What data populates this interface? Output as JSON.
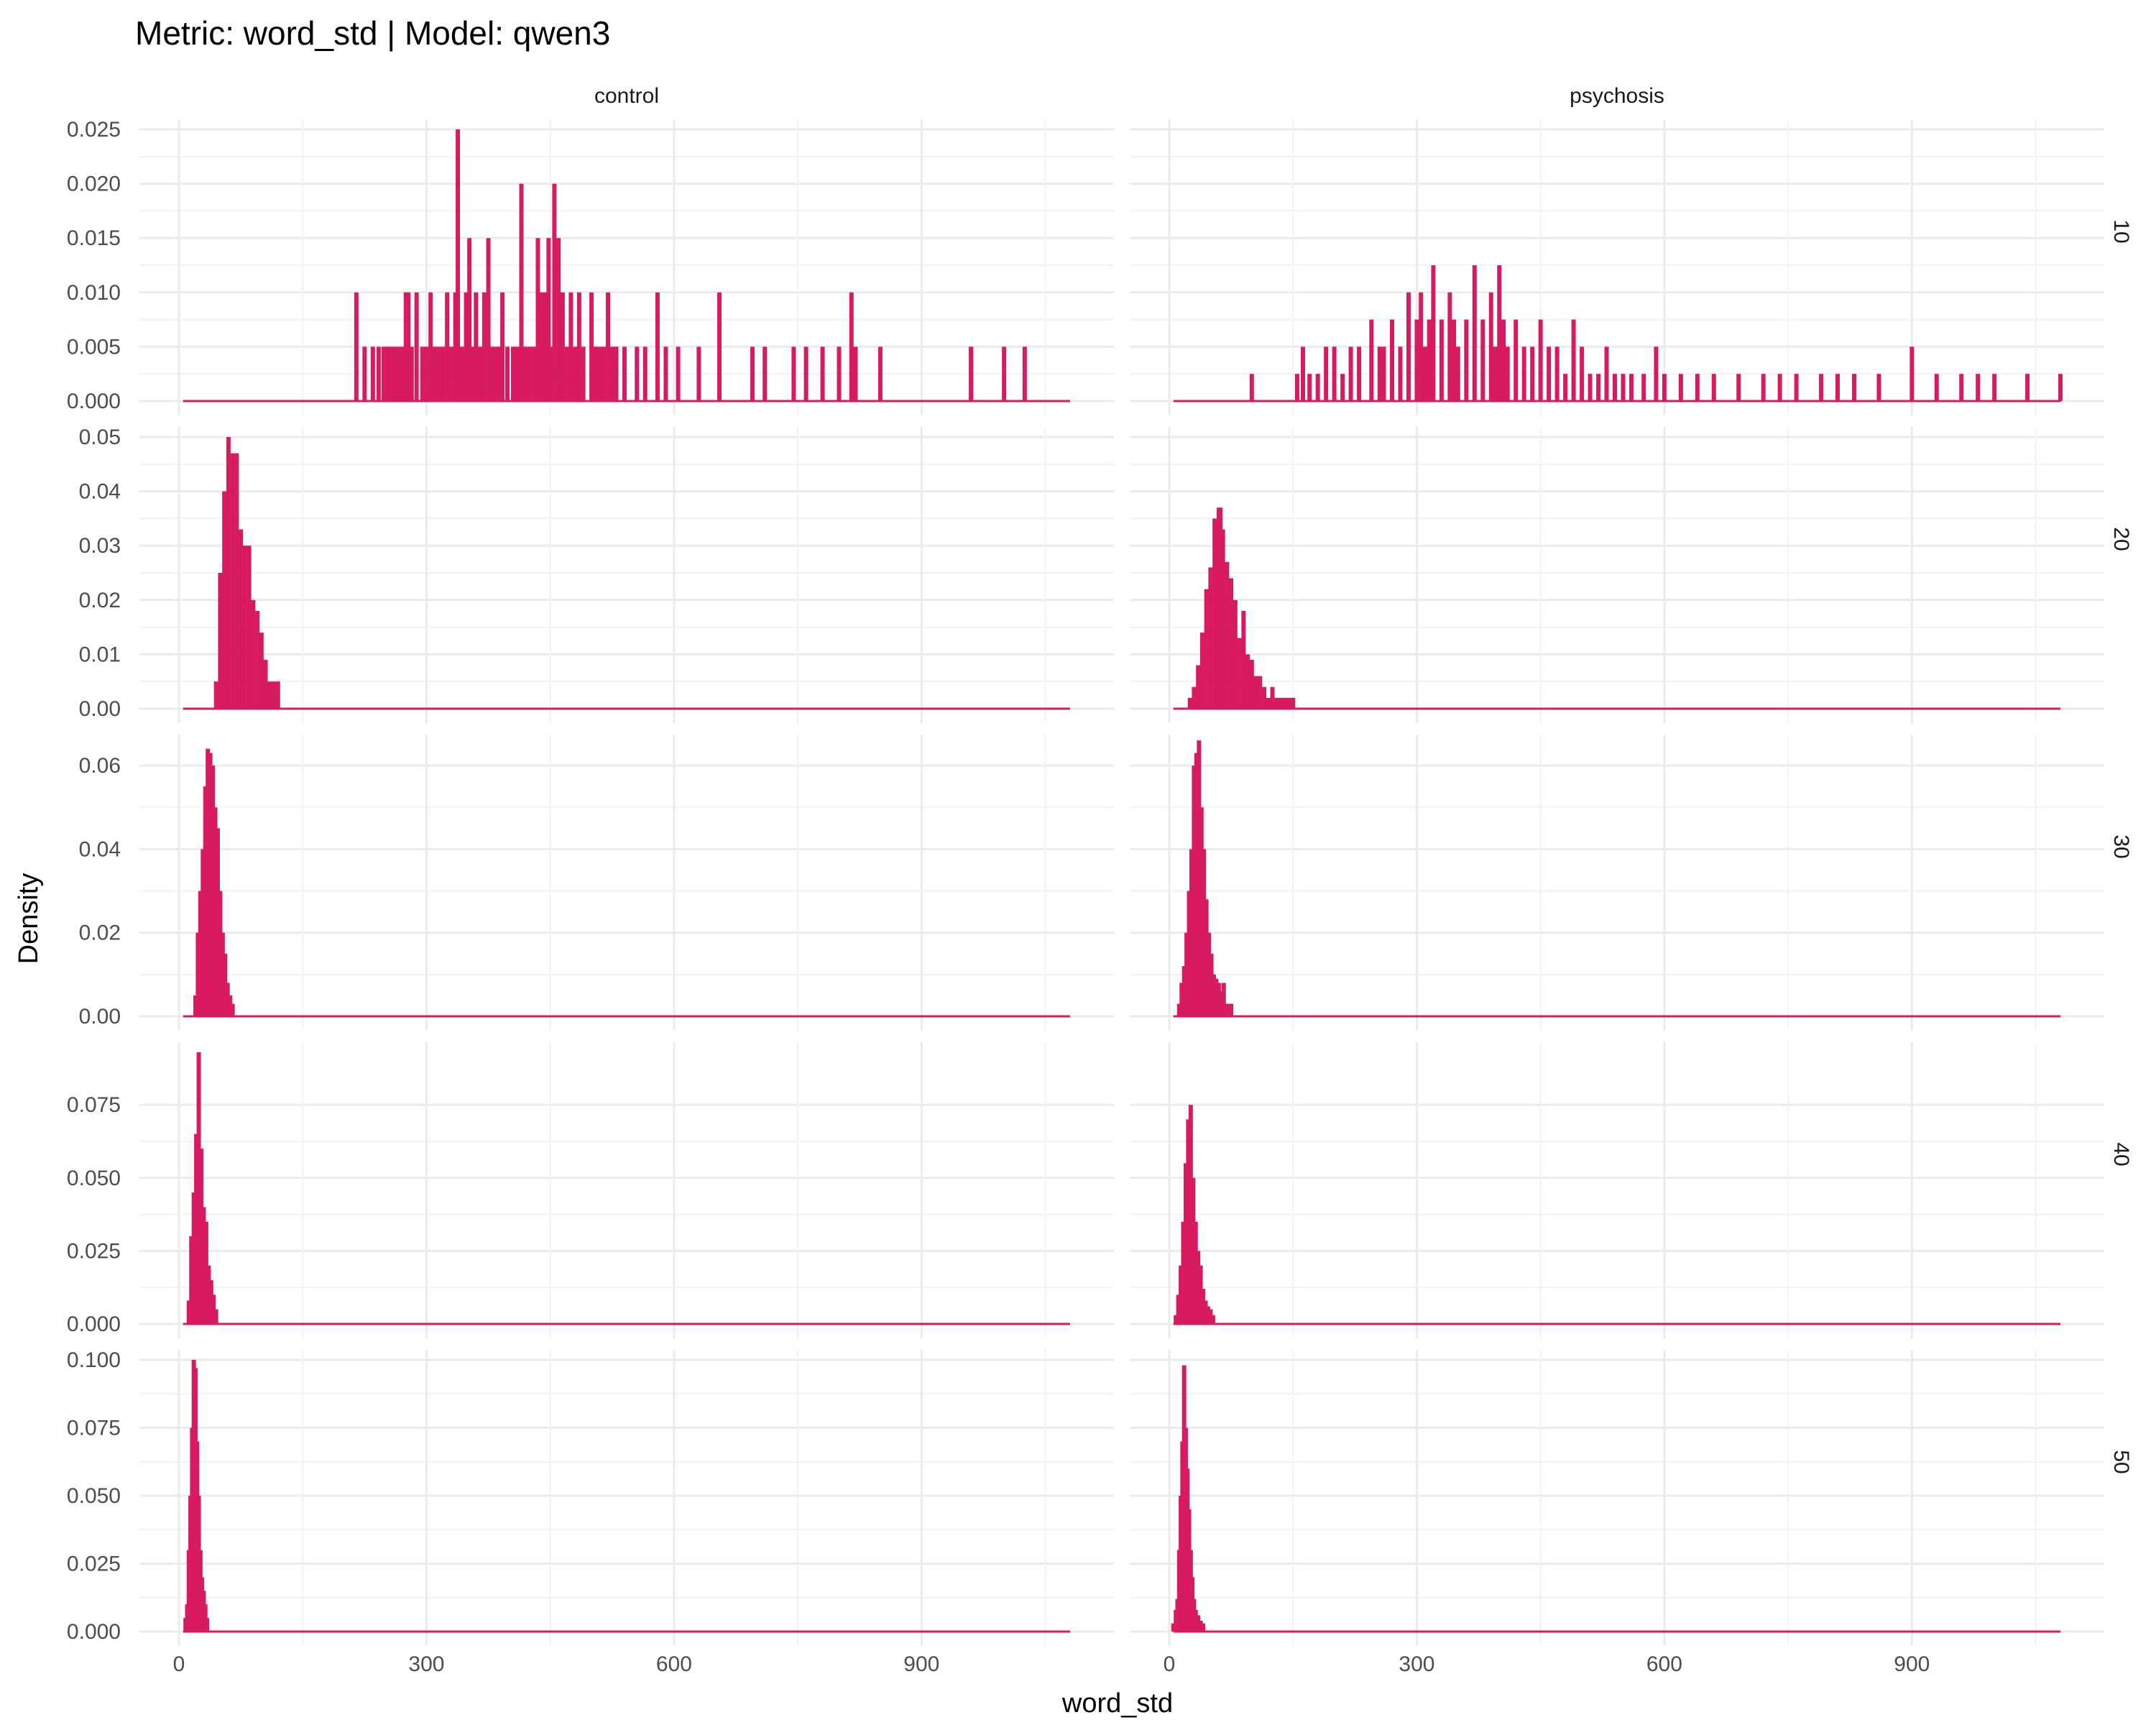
{
  "chart_data": {
    "type": "histogram",
    "title": "Metric: word_std | Model: qwen3",
    "xlabel": "word_std",
    "ylabel": "Density",
    "xlim": [
      0,
      1080
    ],
    "x_ticks": [
      0,
      300,
      600,
      900
    ],
    "x_tick_labels": [
      "0",
      "300",
      "600",
      "900"
    ],
    "fill_color": "#D81B60",
    "gridlines": true,
    "columns": [
      "control",
      "psychosis"
    ],
    "rows": [
      "10",
      "20",
      "30",
      "40",
      "50"
    ],
    "y_axes": [
      {
        "row": "10",
        "ylim": [
          0,
          0.025
        ],
        "ticks": [
          0.0,
          0.005,
          0.01,
          0.015,
          0.02,
          0.025
        ],
        "tick_labels": [
          "0.000",
          "0.005",
          "0.010",
          "0.015",
          "0.020",
          "0.025"
        ]
      },
      {
        "row": "20",
        "ylim": [
          0,
          0.05
        ],
        "ticks": [
          0.0,
          0.01,
          0.02,
          0.03,
          0.04,
          0.05
        ],
        "tick_labels": [
          "0.00",
          "0.01",
          "0.02",
          "0.03",
          "0.04",
          "0.05"
        ]
      },
      {
        "row": "30",
        "ylim": [
          0,
          0.065
        ],
        "ticks": [
          0.0,
          0.02,
          0.04,
          0.06
        ],
        "tick_labels": [
          "0.00",
          "0.02",
          "0.04",
          "0.06"
        ]
      },
      {
        "row": "40",
        "ylim": [
          0,
          0.093
        ],
        "ticks": [
          0.0,
          0.025,
          0.05,
          0.075
        ],
        "tick_labels": [
          "0.000",
          "0.025",
          "0.050",
          "0.075"
        ]
      },
      {
        "row": "50",
        "ylim": [
          0,
          0.1
        ],
        "ticks": [
          0.0,
          0.025,
          0.05,
          0.075,
          0.1
        ],
        "tick_labels": [
          "0.000",
          "0.025",
          "0.050",
          "0.075",
          "0.100"
        ]
      }
    ],
    "panels": [
      {
        "column": "control",
        "row": "10",
        "x": [
          215,
          225,
          235,
          242,
          248,
          252,
          256,
          260,
          265,
          270,
          275,
          278,
          282,
          288,
          295,
          300,
          305,
          310,
          315,
          320,
          325,
          330,
          335,
          338,
          343,
          348,
          352,
          356,
          360,
          365,
          370,
          375,
          380,
          385,
          388,
          392,
          398,
          405,
          410,
          415,
          420,
          425,
          430,
          435,
          440,
          445,
          448,
          452,
          455,
          460,
          465,
          470,
          475,
          480,
          485,
          490,
          500,
          505,
          510,
          515,
          520,
          525,
          530,
          540,
          555,
          565,
          580,
          590,
          605,
          630,
          655,
          695,
          710,
          745,
          760,
          780,
          800,
          815,
          820,
          850,
          960,
          960,
          1000,
          1025
        ],
        "y": [
          0.01,
          0.005,
          0.005,
          0.005,
          0.005,
          0.005,
          0.005,
          0.005,
          0.005,
          0.005,
          0.01,
          0.01,
          0.005,
          0.01,
          0.005,
          0.005,
          0.01,
          0.005,
          0.005,
          0.005,
          0.01,
          0.005,
          0.01,
          0.025,
          0.005,
          0.01,
          0.015,
          0.005,
          0.01,
          0.005,
          0.01,
          0.015,
          0.005,
          0.005,
          0.005,
          0.01,
          0.005,
          0.005,
          0.005,
          0.02,
          0.005,
          0.005,
          0.005,
          0.015,
          0.01,
          0.01,
          0.015,
          0.005,
          0.02,
          0.015,
          0.01,
          0.005,
          0.01,
          0.005,
          0.01,
          0.005,
          0.01,
          0.005,
          0.005,
          0.005,
          0.01,
          0.005,
          0.005,
          0.005,
          0.005,
          0.005,
          0.01,
          0.005,
          0.005,
          0.005,
          0.01,
          0.005,
          0.005,
          0.005,
          0.005,
          0.005,
          0.005,
          0.01,
          0.005,
          0.005,
          0.005,
          0.005,
          0.005,
          0.005
        ]
      },
      {
        "column": "psychosis",
        "row": "10",
        "x": [
          100,
          155,
          162,
          170,
          180,
          190,
          200,
          210,
          220,
          230,
          245,
          255,
          260,
          270,
          280,
          290,
          300,
          305,
          310,
          315,
          320,
          330,
          340,
          345,
          350,
          360,
          370,
          380,
          390,
          395,
          400,
          405,
          410,
          420,
          430,
          440,
          450,
          460,
          470,
          480,
          490,
          500,
          510,
          520,
          530,
          540,
          550,
          560,
          575,
          590,
          600,
          620,
          640,
          660,
          690,
          720,
          740,
          760,
          790,
          810,
          830,
          860,
          900,
          930,
          960,
          980,
          1000,
          1040,
          1080
        ],
        "y": [
          0.0025,
          0.0025,
          0.005,
          0.0025,
          0.0025,
          0.005,
          0.005,
          0.0025,
          0.005,
          0.005,
          0.0075,
          0.005,
          0.005,
          0.0075,
          0.005,
          0.01,
          0.0075,
          0.01,
          0.005,
          0.0075,
          0.0125,
          0.0075,
          0.01,
          0.0075,
          0.005,
          0.0075,
          0.0125,
          0.0075,
          0.01,
          0.005,
          0.0125,
          0.0075,
          0.005,
          0.0075,
          0.005,
          0.005,
          0.0075,
          0.005,
          0.005,
          0.0025,
          0.0075,
          0.005,
          0.0025,
          0.0025,
          0.005,
          0.0025,
          0.0025,
          0.0025,
          0.0025,
          0.005,
          0.0025,
          0.0025,
          0.0025,
          0.0025,
          0.0025,
          0.0025,
          0.0025,
          0.0025,
          0.0025,
          0.0025,
          0.0025,
          0.0025,
          0.005,
          0.0025,
          0.0025,
          0.0025,
          0.0025,
          0.0025,
          0.0025
        ]
      },
      {
        "column": "control",
        "row": "20",
        "x": [
          45,
          50,
          55,
          60,
          65,
          70,
          75,
          80,
          85,
          90,
          95,
          100,
          105,
          110,
          115,
          120
        ],
        "y": [
          0.005,
          0.025,
          0.04,
          0.05,
          0.047,
          0.047,
          0.033,
          0.03,
          0.03,
          0.02,
          0.018,
          0.014,
          0.009,
          0.005,
          0.005,
          0.005
        ]
      },
      {
        "column": "psychosis",
        "row": "20",
        "x": [
          25,
          30,
          35,
          40,
          45,
          50,
          55,
          60,
          62,
          65,
          70,
          75,
          80,
          85,
          90,
          95,
          100,
          105,
          110,
          115,
          120,
          125,
          130,
          135,
          140,
          145,
          150
        ],
        "y": [
          0.002,
          0.004,
          0.008,
          0.014,
          0.022,
          0.026,
          0.035,
          0.037,
          0.037,
          0.033,
          0.027,
          0.024,
          0.02,
          0.013,
          0.018,
          0.01,
          0.009,
          0.006,
          0.006,
          0.004,
          0.002,
          0.004,
          0.002,
          0.002,
          0.002,
          0.002,
          0.002
        ]
      },
      {
        "column": "control",
        "row": "30",
        "x": [
          20,
          23,
          26,
          29,
          32,
          35,
          38,
          41,
          44,
          47,
          50,
          53,
          56,
          59,
          62,
          65
        ],
        "y": [
          0.005,
          0.02,
          0.03,
          0.04,
          0.055,
          0.064,
          0.063,
          0.06,
          0.05,
          0.045,
          0.03,
          0.02,
          0.015,
          0.008,
          0.005,
          0.003
        ]
      },
      {
        "column": "psychosis",
        "row": "30",
        "x": [
          12,
          15,
          18,
          21,
          24,
          27,
          30,
          33,
          36,
          39,
          42,
          45,
          48,
          51,
          54,
          57,
          60,
          63,
          66,
          70,
          75
        ],
        "y": [
          0.003,
          0.008,
          0.012,
          0.02,
          0.03,
          0.04,
          0.06,
          0.063,
          0.066,
          0.05,
          0.04,
          0.028,
          0.02,
          0.015,
          0.01,
          0.009,
          0.008,
          0.006,
          0.008,
          0.003,
          0.003
        ]
      },
      {
        "column": "control",
        "row": "40",
        "x": [
          12,
          15,
          18,
          21,
          24,
          27,
          30,
          33,
          36,
          39,
          42,
          45
        ],
        "y": [
          0.008,
          0.03,
          0.045,
          0.065,
          0.093,
          0.06,
          0.04,
          0.035,
          0.02,
          0.015,
          0.01,
          0.005
        ]
      },
      {
        "column": "psychosis",
        "row": "40",
        "x": [
          8,
          11,
          14,
          17,
          20,
          23,
          26,
          29,
          32,
          35,
          38,
          41,
          44,
          47,
          50,
          53
        ],
        "y": [
          0.003,
          0.01,
          0.02,
          0.035,
          0.055,
          0.07,
          0.075,
          0.05,
          0.035,
          0.025,
          0.02,
          0.012,
          0.008,
          0.006,
          0.005,
          0.003
        ]
      },
      {
        "column": "control",
        "row": "50",
        "x": [
          8,
          10,
          12,
          14,
          16,
          18,
          20,
          22,
          24,
          26,
          28,
          30,
          32,
          34
        ],
        "y": [
          0.005,
          0.01,
          0.03,
          0.05,
          0.075,
          0.1,
          0.097,
          0.07,
          0.05,
          0.03,
          0.02,
          0.015,
          0.01,
          0.005
        ]
      },
      {
        "column": "psychosis",
        "row": "50",
        "x": [
          5,
          8,
          10,
          12,
          14,
          16,
          18,
          20,
          22,
          24,
          26,
          28,
          30,
          32,
          35,
          38,
          41
        ],
        "y": [
          0.003,
          0.008,
          0.012,
          0.03,
          0.05,
          0.07,
          0.098,
          0.075,
          0.06,
          0.045,
          0.03,
          0.02,
          0.012,
          0.008,
          0.006,
          0.004,
          0.003
        ]
      }
    ]
  }
}
